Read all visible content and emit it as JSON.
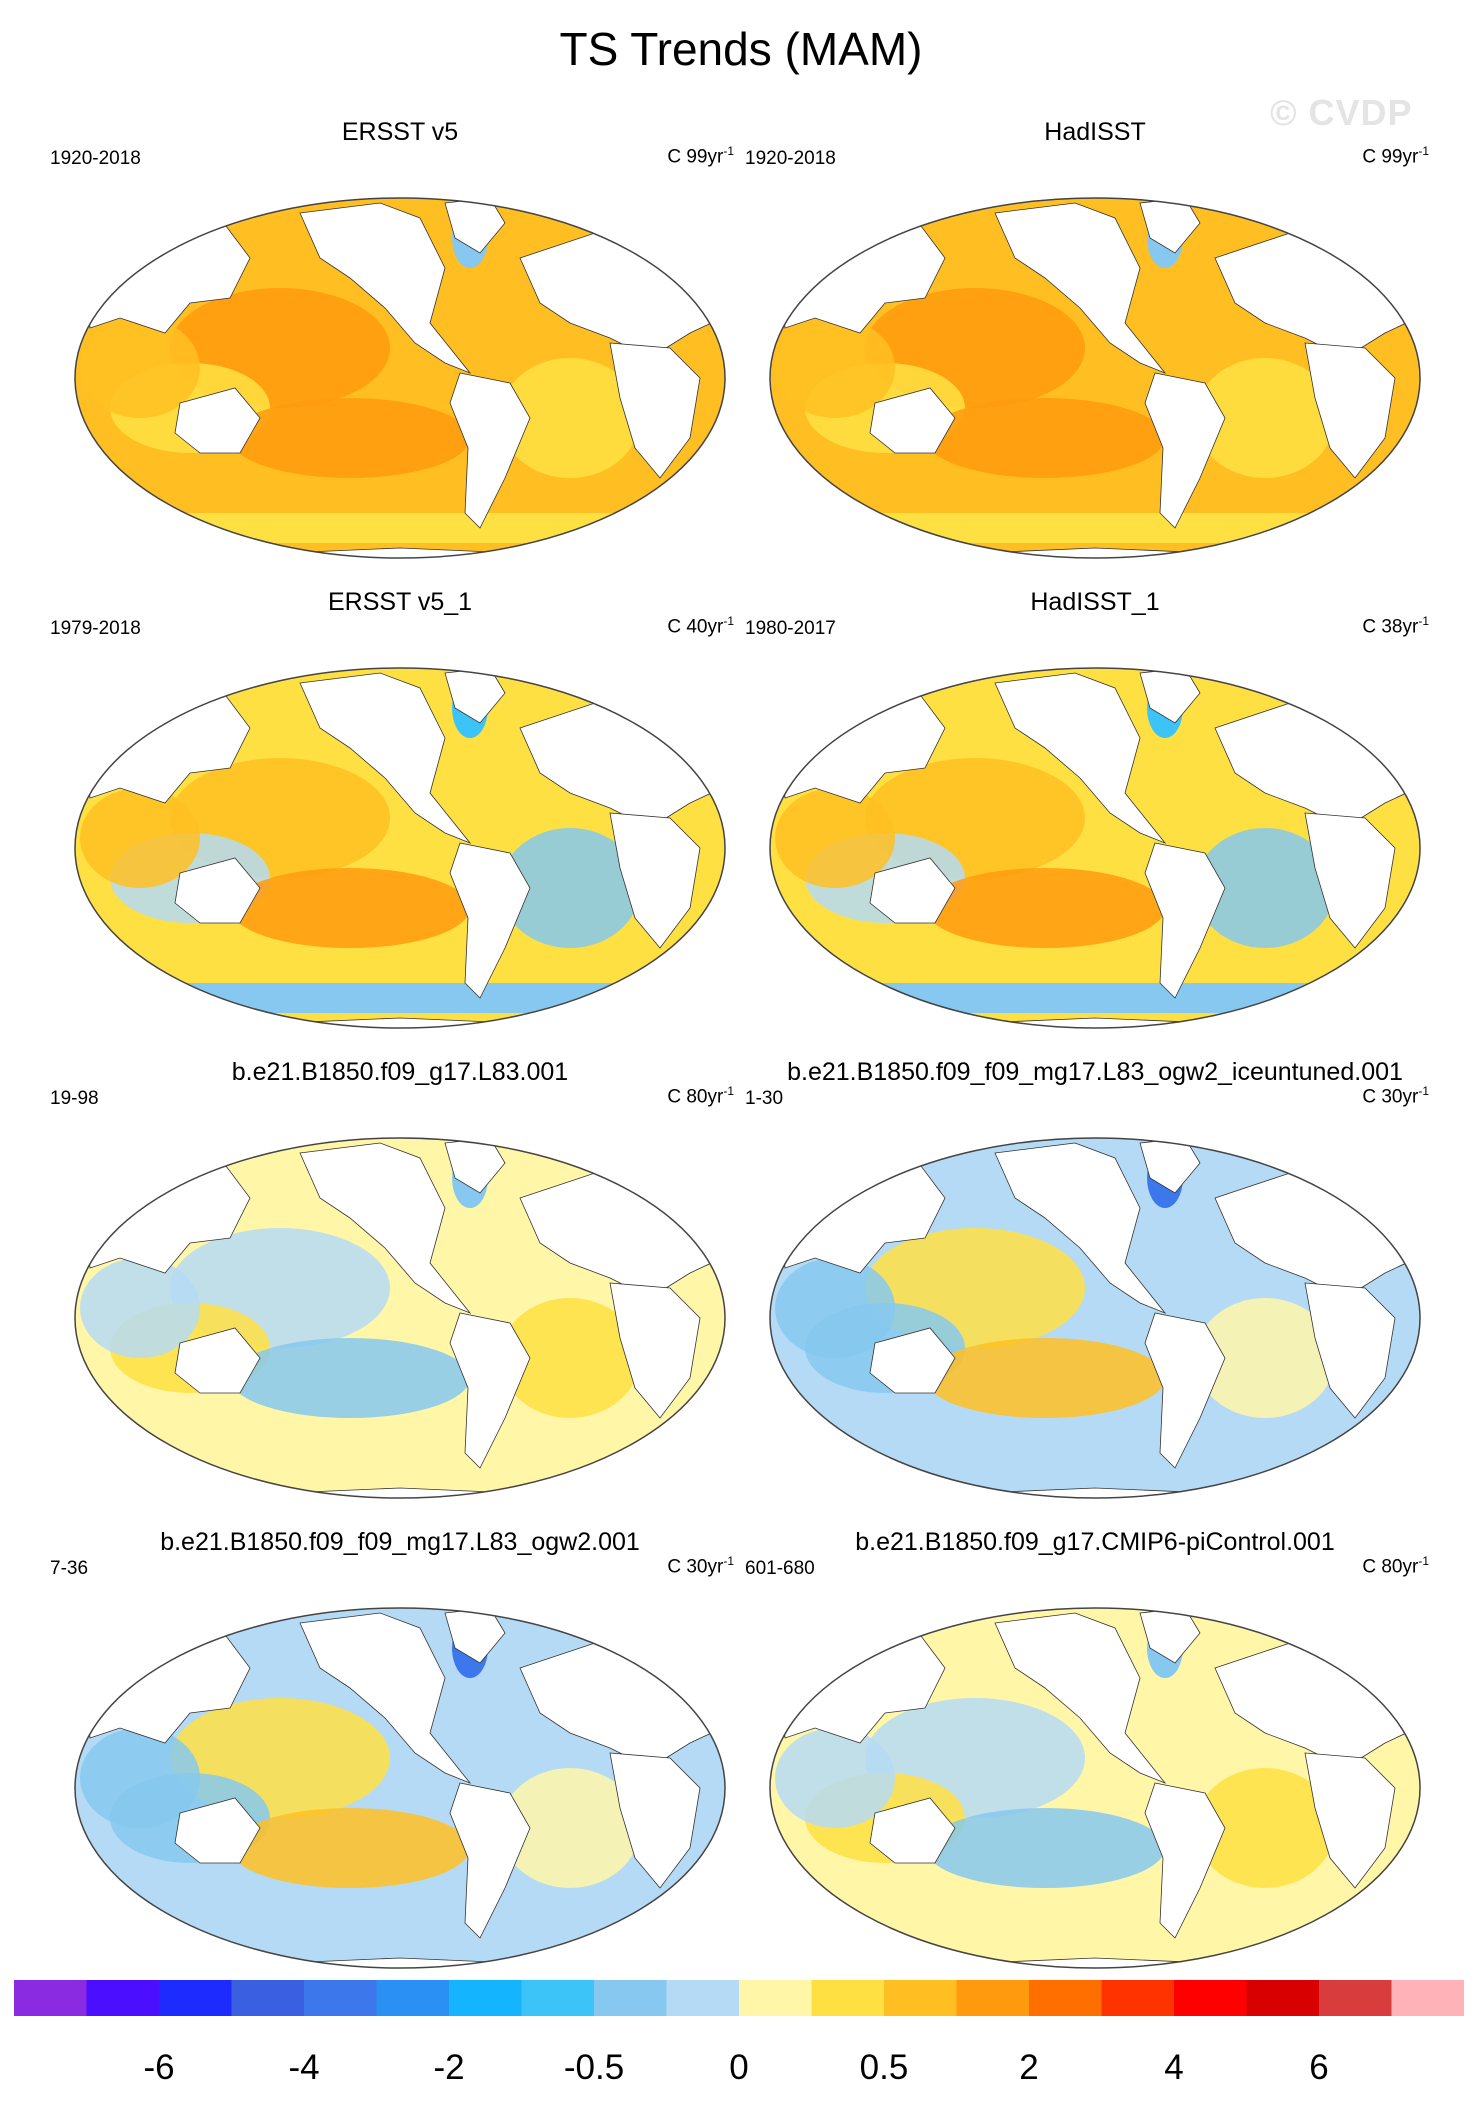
{
  "figure": {
    "title": "TS Trends (MAM)",
    "watermark": "© CVDP"
  },
  "panels": [
    {
      "title": "ERSST v5",
      "period": "1920-2018",
      "units": "C 99yr",
      "units_exp": "-1",
      "pattern": "warm"
    },
    {
      "title": "HadISST",
      "period": "1920-2018",
      "units": "C 99yr",
      "units_exp": "-1",
      "pattern": "warm"
    },
    {
      "title": "ERSST v5_1",
      "period": "1979-2018",
      "units": "C 40yr",
      "units_exp": "-1",
      "pattern": "mixed-warm"
    },
    {
      "title": "HadISST_1",
      "period": "1980-2017",
      "units": "C 38yr",
      "units_exp": "-1",
      "pattern": "mixed-warm"
    },
    {
      "title": "b.e21.B1850.f09_g17.L83.001",
      "period": "19-98",
      "units": "C 80yr",
      "units_exp": "-1",
      "pattern": "mixed"
    },
    {
      "title": "b.e21.B1850.f09_f09_mg17.L83_ogw2_iceuntuned.001",
      "period": "1-30",
      "units": "C 30yr",
      "units_exp": "-1",
      "pattern": "mixed-cool"
    },
    {
      "title": "b.e21.B1850.f09_f09_mg17.L83_ogw2.001",
      "period": "7-36",
      "units": "C 30yr",
      "units_exp": "-1",
      "pattern": "mixed-cool"
    },
    {
      "title": "b.e21.B1850.f09_g17.CMIP6-piControl.001",
      "period": "601-680",
      "units": "C 80yr",
      "units_exp": "-1",
      "pattern": "mixed"
    }
  ],
  "colorbar": {
    "colors": [
      "#8a2be2",
      "#4b0eff",
      "#1e2bff",
      "#3a5fe0",
      "#3c78ec",
      "#2a90f4",
      "#14b4ff",
      "#3cc4f8",
      "#86c8ef",
      "#b5daf5",
      "#fff6a8",
      "#ffe043",
      "#ffbf22",
      "#ff9a0e",
      "#ff6f00",
      "#ff3300",
      "#ff0000",
      "#d80000",
      "#d83c3c",
      "#ffb3b8"
    ],
    "labels": [
      "-6",
      "-4",
      "-2",
      "-0.5",
      "0",
      "0.5",
      "2",
      "4",
      "6"
    ]
  }
}
